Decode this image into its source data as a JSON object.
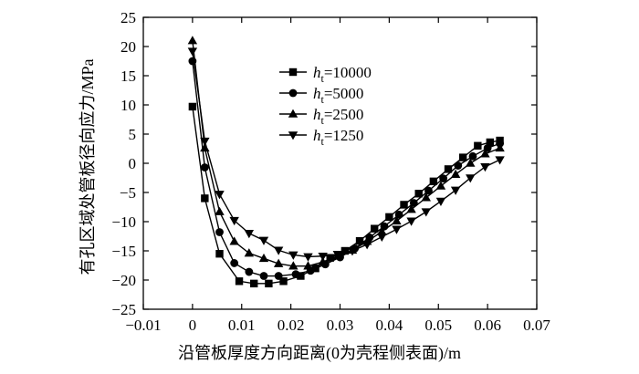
{
  "chart_data": {
    "type": "line",
    "xlabel": "沿管板厚度方向距离(0为壳程侧表面)/m",
    "ylabel": "有孔区域处管板径向应力/MPa",
    "xlim": [
      -0.01,
      0.07
    ],
    "ylim": [
      -25,
      25
    ],
    "x_ticks": [
      "−0.01",
      "0",
      "0.01",
      "0.02",
      "0.03",
      "0.04",
      "0.05",
      "0.06",
      "0.07"
    ],
    "y_ticks": [
      "25",
      "20",
      "15",
      "10",
      "5",
      "0",
      "−5",
      "−10",
      "−15",
      "−20",
      "−25"
    ],
    "legend_position": "upper-center",
    "series": [
      {
        "name_prefix": "h",
        "name_subscript": "t",
        "name_value": "=10000",
        "marker": "square",
        "x": [
          0,
          0.0025,
          0.0055,
          0.0095,
          0.0125,
          0.0155,
          0.0185,
          0.022,
          0.025,
          0.028,
          0.031,
          0.034,
          0.037,
          0.04,
          0.043,
          0.046,
          0.049,
          0.052,
          0.055,
          0.058,
          0.0605,
          0.0625
        ],
        "values": [
          9.7,
          -6,
          -15.5,
          -20.2,
          -20.6,
          -20.6,
          -20.2,
          -19.3,
          -18,
          -16.2,
          -15,
          -13.3,
          -11.2,
          -9.2,
          -7.1,
          -5.2,
          -3.1,
          -1,
          1,
          3,
          3.6,
          3.9
        ]
      },
      {
        "name_prefix": "h",
        "name_subscript": "t",
        "name_value": "=5000",
        "marker": "circle",
        "x": [
          0,
          0.0025,
          0.0055,
          0.0085,
          0.0115,
          0.0145,
          0.0175,
          0.021,
          0.024,
          0.027,
          0.03,
          0.033,
          0.036,
          0.039,
          0.042,
          0.045,
          0.048,
          0.051,
          0.054,
          0.057,
          0.06,
          0.0625
        ],
        "values": [
          17.5,
          -0.7,
          -11.8,
          -17.1,
          -18.6,
          -19.3,
          -19.3,
          -19,
          -18.4,
          -17.3,
          -16.1,
          -14.6,
          -12.7,
          -10.8,
          -8.8,
          -6.8,
          -4.7,
          -2.6,
          -0.4,
          1.2,
          2.6,
          3.4
        ]
      },
      {
        "name_prefix": "h",
        "name_subscript": "t",
        "name_value": "=2500",
        "marker": "triangle-up",
        "x": [
          0,
          0.0025,
          0.0055,
          0.0085,
          0.0115,
          0.0145,
          0.0175,
          0.0205,
          0.0235,
          0.0265,
          0.0295,
          0.0325,
          0.0355,
          0.0385,
          0.0415,
          0.0445,
          0.0475,
          0.0505,
          0.0535,
          0.0565,
          0.0595,
          0.0625
        ],
        "values": [
          21,
          2.6,
          -8.3,
          -13.4,
          -15.4,
          -16.3,
          -17.2,
          -17.6,
          -17.6,
          -16.9,
          -15.9,
          -14.9,
          -13.4,
          -11.7,
          -9.9,
          -7.9,
          -5.9,
          -3.9,
          -1.9,
          0,
          1.6,
          2.6
        ]
      },
      {
        "name_prefix": "h",
        "name_subscript": "t",
        "name_value": "=1250",
        "marker": "triangle-down",
        "x": [
          0,
          0.0025,
          0.0055,
          0.0085,
          0.0115,
          0.0145,
          0.0175,
          0.0205,
          0.0235,
          0.0265,
          0.0295,
          0.0325,
          0.0355,
          0.0385,
          0.0415,
          0.0445,
          0.0475,
          0.0505,
          0.0535,
          0.0565,
          0.0595,
          0.0625
        ],
        "values": [
          19.2,
          3.8,
          -5.3,
          -9.8,
          -12,
          -13.2,
          -14.9,
          -15.7,
          -16,
          -15.9,
          -15.6,
          -15,
          -13.9,
          -12.6,
          -11.3,
          -9.9,
          -8.3,
          -6.5,
          -4.6,
          -2.5,
          -0.6,
          0.6
        ]
      }
    ]
  }
}
